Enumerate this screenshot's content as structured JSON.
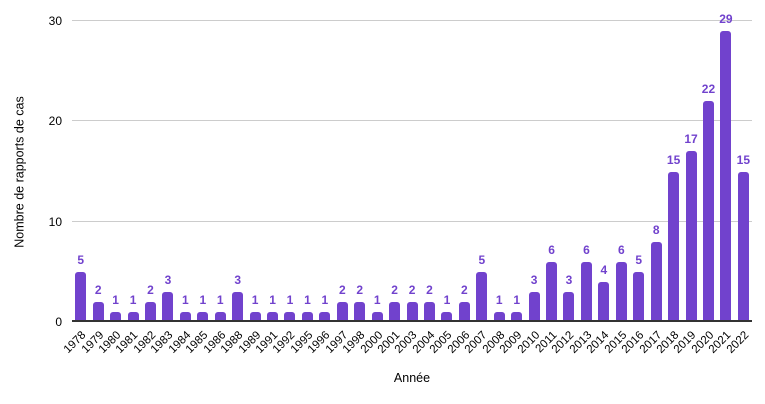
{
  "chart_data": {
    "type": "bar",
    "title": "",
    "xlabel": "Année",
    "ylabel": "Nombre de rapports de cas",
    "categories": [
      "1978",
      "1979",
      "1980",
      "1981",
      "1982",
      "1983",
      "1984",
      "1985",
      "1986",
      "1988",
      "1989",
      "1991",
      "1992",
      "1995",
      "1996",
      "1997",
      "1998",
      "2000",
      "2001",
      "2003",
      "2004",
      "2005",
      "2006",
      "2007",
      "2008",
      "2009",
      "2010",
      "2011",
      "2012",
      "2013",
      "2014",
      "2015",
      "2016",
      "2017",
      "2018",
      "2019",
      "2020",
      "2021",
      "2022"
    ],
    "values": [
      5,
      2,
      1,
      1,
      2,
      3,
      1,
      1,
      1,
      3,
      1,
      1,
      1,
      1,
      1,
      2,
      2,
      1,
      2,
      2,
      2,
      1,
      2,
      5,
      1,
      1,
      3,
      6,
      3,
      6,
      4,
      6,
      5,
      8,
      15,
      17,
      22,
      29,
      15
    ],
    "ylim": [
      0,
      30
    ],
    "yticks": [
      0,
      10,
      20,
      30
    ],
    "grid": true,
    "legend": "none",
    "data_labels_shown": true,
    "colors": {
      "bar": "#7142CD",
      "data_label": "#7142CD",
      "gridline": "#CCCCCC",
      "axis_line": "#333333",
      "text": "#000000",
      "background": "#FFFFFF"
    }
  }
}
